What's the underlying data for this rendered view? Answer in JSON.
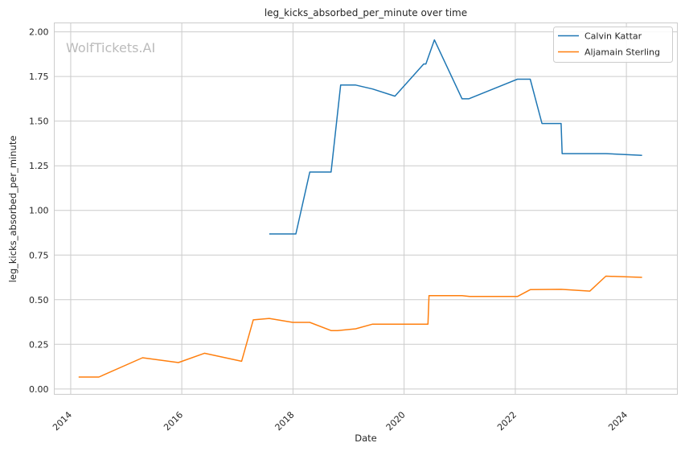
{
  "chart_data": {
    "type": "line",
    "title": "leg_kicks_absorbed_per_minute over time",
    "xlabel": "Date",
    "ylabel": "leg_kicks_absorbed_per_minute",
    "watermark": "WolfTickets.AI",
    "x_ticks": [
      "2014",
      "2016",
      "2018",
      "2020",
      "2022",
      "2024"
    ],
    "y_ticks": [
      "0.00",
      "0.25",
      "0.50",
      "0.75",
      "1.00",
      "1.25",
      "1.50",
      "1.75",
      "2.00"
    ],
    "xlim": [
      "2013-09-15",
      "2024-12-01"
    ],
    "ylim": [
      -0.03,
      2.05
    ],
    "grid": true,
    "legend_position": "top-right",
    "series": [
      {
        "name": "Calvin Kattar",
        "color": "#1f77b4",
        "points": [
          [
            "2017-07-29",
            0.868
          ],
          [
            "2018-01-20",
            0.868
          ],
          [
            "2018-04-21",
            1.215
          ],
          [
            "2018-09-08",
            1.215
          ],
          [
            "2018-11-10",
            1.702
          ],
          [
            "2019-02-17",
            1.702
          ],
          [
            "2019-06-08",
            1.68
          ],
          [
            "2019-11-02",
            1.64
          ],
          [
            "2020-05-09",
            1.82
          ],
          [
            "2020-05-23",
            1.82
          ],
          [
            "2020-07-18",
            1.955
          ],
          [
            "2021-01-16",
            1.625
          ],
          [
            "2021-03-01",
            1.625
          ],
          [
            "2022-01-15",
            1.735
          ],
          [
            "2022-04-09",
            1.735
          ],
          [
            "2022-06-25",
            1.487
          ],
          [
            "2022-10-29",
            1.487
          ],
          [
            "2022-11-05",
            1.318
          ],
          [
            "2023-08-19",
            1.318
          ],
          [
            "2024-04-13",
            1.308
          ]
        ]
      },
      {
        "name": "Aljamain Sterling",
        "color": "#ff7f0e",
        "points": [
          [
            "2014-02-22",
            0.067
          ],
          [
            "2014-07-05",
            0.067
          ],
          [
            "2015-04-18",
            0.175
          ],
          [
            "2015-12-10",
            0.148
          ],
          [
            "2016-05-29",
            0.2
          ],
          [
            "2017-01-28",
            0.155
          ],
          [
            "2017-04-15",
            0.387
          ],
          [
            "2017-07-29",
            0.395
          ],
          [
            "2017-12-30",
            0.373
          ],
          [
            "2018-04-21",
            0.373
          ],
          [
            "2018-09-08",
            0.327
          ],
          [
            "2018-10-20",
            0.327
          ],
          [
            "2019-02-17",
            0.337
          ],
          [
            "2019-06-08",
            0.363
          ],
          [
            "2020-06-06",
            0.363
          ],
          [
            "2020-06-13",
            0.523
          ],
          [
            "2021-01-16",
            0.523
          ],
          [
            "2021-03-06",
            0.518
          ],
          [
            "2022-01-15",
            0.518
          ],
          [
            "2022-04-09",
            0.556
          ],
          [
            "2022-10-29",
            0.558
          ],
          [
            "2023-05-06",
            0.548
          ],
          [
            "2023-08-19",
            0.632
          ],
          [
            "2024-04-13",
            0.625
          ]
        ]
      }
    ]
  }
}
